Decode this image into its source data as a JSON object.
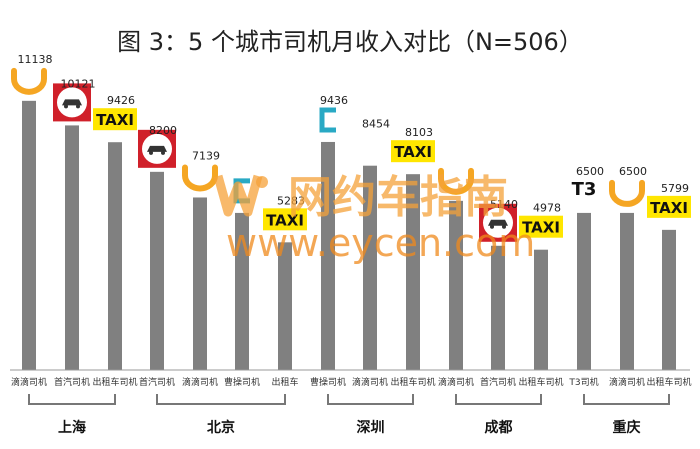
{
  "chart_data": {
    "type": "bar",
    "title": "图 3：5 个城市司机月收入对比（N=506）",
    "categories": [
      "滴滴司机",
      "首汽司机",
      "出租车司机",
      "首汽司机",
      "滴滴司机",
      "曹操司机",
      "出租车",
      "曹操司机",
      "滴滴司机",
      "出租车司机",
      "滴滴司机",
      "首汽司机",
      "出租车司机",
      "T3司机",
      "滴滴司机",
      "出租车司机"
    ],
    "values": [
      11138,
      10121,
      9426,
      8200,
      7139,
      6500,
      5283,
      9436,
      8454,
      8103,
      7000,
      5140,
      4978,
      6500,
      6500,
      5799
    ],
    "value_labels": [
      "11138",
      "10121",
      "9426",
      "8200",
      "7139",
      "",
      "5283",
      "9436",
      "8454",
      "8103",
      "",
      "5140",
      "4978",
      "6500",
      "6500",
      "5799"
    ],
    "groups": [
      {
        "name": "上海",
        "start": 0,
        "end": 2
      },
      {
        "name": "北京",
        "start": 3,
        "end": 6
      },
      {
        "name": "深圳",
        "start": 7,
        "end": 9
      },
      {
        "name": "成都",
        "start": 10,
        "end": 12
      },
      {
        "name": "重庆",
        "start": 13,
        "end": 15
      }
    ],
    "logos": [
      "didi-logo",
      "shouqi-logo",
      "taxi-logo",
      "shouqi-logo",
      "didi-logo",
      "caocao-logo",
      "taxi-logo",
      "caocao-logo",
      "",
      "taxi-logo",
      "didi-logo",
      "shouqi-logo",
      "taxi-logo",
      "t3-logo",
      "didi-logo",
      "taxi-logo"
    ],
    "ylim": [
      0,
      12000
    ],
    "grid": false,
    "colors": {
      "bar": "#808080",
      "didi": "#f5a623",
      "taxi_bg": "#ffe600",
      "shouqi": "#d0202a",
      "caocao": "#29a9c4"
    }
  },
  "logo_texts": {
    "taxi": "TAXI",
    "t3": "T3"
  },
  "watermark": {
    "brand": "网约车指南",
    "url": "www.eycen.com"
  }
}
